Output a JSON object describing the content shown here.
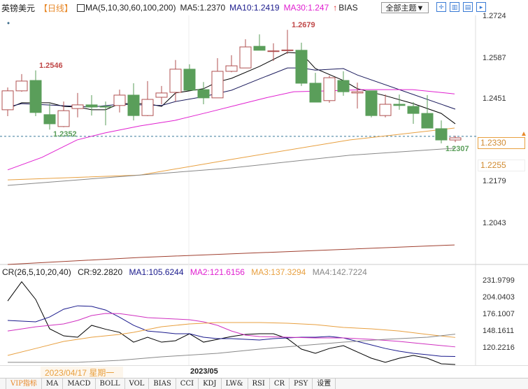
{
  "header": {
    "symbol": "英镑美元",
    "period": "【日线】",
    "ma_label": "MA(5,10,30,60,100,200)",
    "ma5": "MA5:1.2370",
    "ma10": "MA10:1.2419",
    "ma30": "MA30:1.247",
    "indicator": "BIAS",
    "theme_select": "全部主题▼",
    "up_arrow_icon": "arrow-up-icon"
  },
  "colors": {
    "up": "#b05050",
    "down": "#5a9e5a",
    "ma5": "#000000",
    "ma10": "#1a1a5c",
    "ma30": "#e020d0",
    "ma60": "#e8a040",
    "ma100": "#888888",
    "ma200": "#a04030",
    "cr": "#000000",
    "cr_ma1": "#1a1a8c",
    "cr_ma2": "#d030c0",
    "cr_ma3": "#e8a040",
    "cr_ma4": "#888888"
  },
  "price_axis": {
    "ticks": [
      "1.2724",
      "1.2587",
      "1.2451",
      "1.2179",
      "1.2043"
    ],
    "current_price": "1.2330",
    "marker_price": "1.2255"
  },
  "annotations": {
    "high1": "1.2546",
    "low1": "1.2352",
    "high2": "1.2679",
    "low2": "1.2307"
  },
  "chart_data": [
    {
      "type": "candlestick",
      "ylim": [
        1.2043,
        1.2724
      ],
      "candles": [
        [
          1.2417,
          1.249,
          1.2396,
          1.2479
        ],
        [
          1.2479,
          1.2534,
          1.2476,
          1.2511
        ],
        [
          1.2513,
          1.2546,
          1.2396,
          1.2408
        ],
        [
          1.2401,
          1.2437,
          1.2352,
          1.2371
        ],
        [
          1.2362,
          1.2444,
          1.236,
          1.2414
        ],
        [
          1.2421,
          1.2472,
          1.2392,
          1.2433
        ],
        [
          1.2433,
          1.2465,
          1.2398,
          1.2426
        ],
        [
          1.2428,
          1.2444,
          1.2366,
          1.2426
        ],
        [
          1.2431,
          1.2483,
          1.2408,
          1.2465
        ],
        [
          1.2465,
          1.2504,
          1.2382,
          1.2398
        ],
        [
          1.2398,
          1.2511,
          1.2396,
          1.2451
        ],
        [
          1.2458,
          1.2495,
          1.2435,
          1.2472
        ],
        [
          1.2474,
          1.258,
          1.2444,
          1.255
        ],
        [
          1.255,
          1.2566,
          1.2481,
          1.2481
        ],
        [
          1.2483,
          1.2508,
          1.2435,
          1.2456
        ],
        [
          1.2456,
          1.2586,
          1.2456,
          1.2543
        ],
        [
          1.2543,
          1.2596,
          1.254,
          1.2561
        ],
        [
          1.2554,
          1.2648,
          1.2554,
          1.2623
        ],
        [
          1.2625,
          1.2664,
          1.2612,
          1.2612
        ],
        [
          1.2609,
          1.2635,
          1.2577,
          1.261
        ],
        [
          1.2612,
          1.2679,
          1.26,
          1.2613
        ],
        [
          1.2612,
          1.2637,
          1.2495,
          1.2504
        ],
        [
          1.2504,
          1.2538,
          1.2442,
          1.2442
        ],
        [
          1.2447,
          1.2529,
          1.244,
          1.2522
        ],
        [
          1.2513,
          1.2543,
          1.2463,
          1.2476
        ],
        [
          1.2472,
          1.2506,
          1.2421,
          1.2476
        ],
        [
          1.2479,
          1.2479,
          1.2392,
          1.2398
        ],
        [
          1.2398,
          1.2467,
          1.2392,
          1.2435
        ],
        [
          1.2435,
          1.2467,
          1.2417,
          1.2431
        ],
        [
          1.2428,
          1.2442,
          1.2371,
          1.2405
        ],
        [
          1.2405,
          1.2465,
          1.2357,
          1.2357
        ],
        [
          1.2355,
          1.2382,
          1.2307,
          1.2318
        ],
        [
          1.2318,
          1.2332,
          1.2311,
          1.2325
        ]
      ],
      "series": [
        {
          "name": "MA5",
          "points": [
            [
              0,
              1.2421
            ],
            [
              1,
              1.244
            ],
            [
              3,
              1.244
            ],
            [
              4,
              1.2428
            ],
            [
              5,
              1.2426
            ],
            [
              6,
              1.2417
            ],
            [
              7,
              1.2417
            ],
            [
              8,
              1.2437
            ],
            [
              10,
              1.2437
            ],
            [
              11,
              1.2428
            ],
            [
              12,
              1.2472
            ],
            [
              14,
              1.2486
            ],
            [
              15,
              1.2508
            ],
            [
              16,
              1.252
            ],
            [
              18,
              1.2559
            ],
            [
              20,
              1.2605
            ],
            [
              21,
              1.2602
            ],
            [
              22,
              1.2552
            ],
            [
              24,
              1.2513
            ],
            [
              25,
              1.2486
            ],
            [
              27,
              1.2463
            ],
            [
              29,
              1.2437
            ],
            [
              31,
              1.2405
            ],
            [
              32,
              1.2371
            ]
          ]
        },
        {
          "name": "MA10",
          "points": [
            [
              0,
              1.2426
            ],
            [
              1,
              1.2437
            ],
            [
              5,
              1.2428
            ],
            [
              6,
              1.2426
            ],
            [
              8,
              1.2435
            ],
            [
              11,
              1.2431
            ],
            [
              12,
              1.2444
            ],
            [
              14,
              1.246
            ],
            [
              16,
              1.2481
            ],
            [
              18,
              1.2518
            ],
            [
              20,
              1.2554
            ],
            [
              21,
              1.2554
            ],
            [
              22,
              1.2547
            ],
            [
              24,
              1.2552
            ],
            [
              25,
              1.2531
            ],
            [
              28,
              1.2483
            ],
            [
              32,
              1.2419
            ]
          ]
        },
        {
          "name": "MA30",
          "points": [
            [
              0,
              1.222
            ],
            [
              2.45,
              1.2261
            ],
            [
              4.95,
              1.2318
            ],
            [
              6.95,
              1.2341
            ],
            [
              9.45,
              1.2364
            ],
            [
              11.95,
              1.2382
            ],
            [
              14.45,
              1.241
            ],
            [
              16.45,
              1.2433
            ],
            [
              18.45,
              1.2456
            ],
            [
              20.45,
              1.2476
            ],
            [
              22.95,
              1.2479
            ],
            [
              25.45,
              1.2483
            ],
            [
              28.95,
              1.2483
            ],
            [
              31.95,
              1.2469
            ]
          ]
        },
        {
          "name": "MA60",
          "points": [
            [
              0,
              1.2187
            ],
            [
              9.45,
              1.2203
            ],
            [
              15.95,
              1.2254
            ],
            [
              24.45,
              1.2318
            ],
            [
              31.95,
              1.2357
            ]
          ]
        },
        {
          "name": "MA100",
          "points": [
            [
              0,
              1.2169
            ],
            [
              9.45,
              1.2203
            ],
            [
              15.95,
              1.2226
            ],
            [
              24.45,
              1.2268
            ],
            [
              31.95,
              1.2291
            ]
          ]
        },
        {
          "name": "MA200",
          "points": [
            [
              0,
              1.191
            ],
            [
              9.45,
              1.1933
            ],
            [
              19.45,
              1.1951
            ],
            [
              31.95,
              1.1974
            ]
          ]
        }
      ]
    },
    {
      "type": "line",
      "title": "CR(26,5,10,20,40)",
      "ylim": [
        92.28,
        231.9799
      ],
      "yticks": [
        "231.9799",
        "204.0403",
        "176.1007",
        "148.1611",
        "120.2216"
      ],
      "series": [
        {
          "name": "CR:92.2820",
          "points": [
            [
              0,
              198
            ],
            [
              1,
              230
            ],
            [
              2,
              200.6
            ],
            [
              3,
              151.7
            ],
            [
              4,
              140
            ],
            [
              5,
              137.7
            ],
            [
              6,
              157.5
            ],
            [
              7,
              151
            ],
            [
              8,
              145.8
            ],
            [
              9,
              129.5
            ],
            [
              10,
              137.7
            ],
            [
              11,
              129.5
            ],
            [
              12,
              131.9
            ],
            [
              13,
              143.5
            ],
            [
              14,
              129.5
            ],
            [
              15,
              134.2
            ],
            [
              16,
              138.9
            ],
            [
              17,
              142.3
            ],
            [
              18,
              143.5
            ],
            [
              19,
              143.5
            ],
            [
              20,
              135.4
            ],
            [
              21,
              117.9
            ],
            [
              22,
              110.9
            ],
            [
              23,
              119
            ],
            [
              24,
              123.7
            ],
            [
              25,
              113.2
            ],
            [
              26,
              102.8
            ],
            [
              27,
              96
            ],
            [
              28,
              102.8
            ],
            [
              29,
              107.4
            ],
            [
              30,
              102.8
            ],
            [
              31,
              93.5
            ],
            [
              32,
              92.28
            ]
          ]
        },
        {
          "name": "MA1:105.6244",
          "points": [
            [
              0,
              165.6
            ],
            [
              2,
              163.3
            ],
            [
              3,
              171.4
            ],
            [
              4,
              184.3
            ],
            [
              5,
              190
            ],
            [
              6,
              189
            ],
            [
              7,
              183
            ],
            [
              8,
              171
            ],
            [
              9,
              157.5
            ],
            [
              10,
              148
            ],
            [
              11,
              146
            ],
            [
              12,
              143.5
            ],
            [
              13,
              143.5
            ],
            [
              14,
              137.7
            ],
            [
              15,
              135.4
            ],
            [
              16,
              135.4
            ],
            [
              17,
              134.2
            ],
            [
              18,
              133
            ],
            [
              19,
              135.4
            ],
            [
              20,
              136.5
            ],
            [
              21,
              137.7
            ],
            [
              22,
              137.7
            ],
            [
              23,
              139
            ],
            [
              24,
              136.5
            ],
            [
              25,
              130.7
            ],
            [
              26,
              124.9
            ],
            [
              27,
              119
            ],
            [
              28,
              114.4
            ],
            [
              29,
              110.9
            ],
            [
              30,
              108.6
            ],
            [
              31,
              106
            ],
            [
              32,
              105.62
            ]
          ]
        },
        {
          "name": "MA2:121.6156",
          "points": [
            [
              0,
              148
            ],
            [
              2,
              155
            ],
            [
              4,
              159.8
            ],
            [
              5,
              165.6
            ],
            [
              6,
              173.8
            ],
            [
              7,
              177.3
            ],
            [
              8,
              177
            ],
            [
              9,
              173.8
            ],
            [
              10,
              170.3
            ],
            [
              12,
              168
            ],
            [
              13,
              166.8
            ],
            [
              14,
              163.3
            ],
            [
              15,
              157.5
            ],
            [
              16,
              148
            ],
            [
              17,
              141.2
            ],
            [
              18,
              138.9
            ],
            [
              20,
              137.7
            ],
            [
              22,
              136.5
            ],
            [
              24,
              136.5
            ],
            [
              26,
              134.2
            ],
            [
              28,
              130.7
            ],
            [
              30,
              126
            ],
            [
              32,
              121.62
            ]
          ]
        },
        {
          "name": "MA3:137.3294",
          "points": [
            [
              0,
              107.4
            ],
            [
              2,
              119
            ],
            [
              4,
              130.7
            ],
            [
              6,
              137.7
            ],
            [
              8,
              142.3
            ],
            [
              9,
              145.8
            ],
            [
              11,
              155.2
            ],
            [
              13,
              159.8
            ],
            [
              15,
              162.1
            ],
            [
              18,
              162.1
            ],
            [
              20,
              161
            ],
            [
              22,
              158.6
            ],
            [
              24,
              154
            ],
            [
              26,
              151.7
            ],
            [
              28,
              148
            ],
            [
              30,
              142.3
            ],
            [
              32,
              137.33
            ]
          ]
        },
        {
          "name": "MA4:142.7224",
          "points": [
            [
              0,
              96
            ],
            [
              5,
              96
            ],
            [
              8,
              99.3
            ],
            [
              11,
              105.1
            ],
            [
              15,
              110.9
            ],
            [
              18,
              117.9
            ],
            [
              21,
              123.7
            ],
            [
              24,
              129.5
            ],
            [
              27,
              134.2
            ],
            [
              30,
              137.7
            ],
            [
              32,
              142.72
            ]
          ]
        }
      ]
    }
  ],
  "cr_header": {
    "label": "CR(26,5,10,20,40)",
    "cr": "CR:92.2820",
    "ma1": "MA1:105.6244",
    "ma2": "MA2:121.6156",
    "ma3": "MA3:137.3294",
    "ma4": "MA4:142.7224"
  },
  "date_bar": {
    "cursor_date": "2023/04/17 星期一",
    "month": "2023/05"
  },
  "tabs": [
    "VIP指标",
    "MA",
    "MACD",
    "BOLL",
    "VOL",
    "BIAS",
    "CCI",
    "KDJ",
    "LW&",
    "RSI",
    "CR",
    "PSY",
    "设置"
  ]
}
